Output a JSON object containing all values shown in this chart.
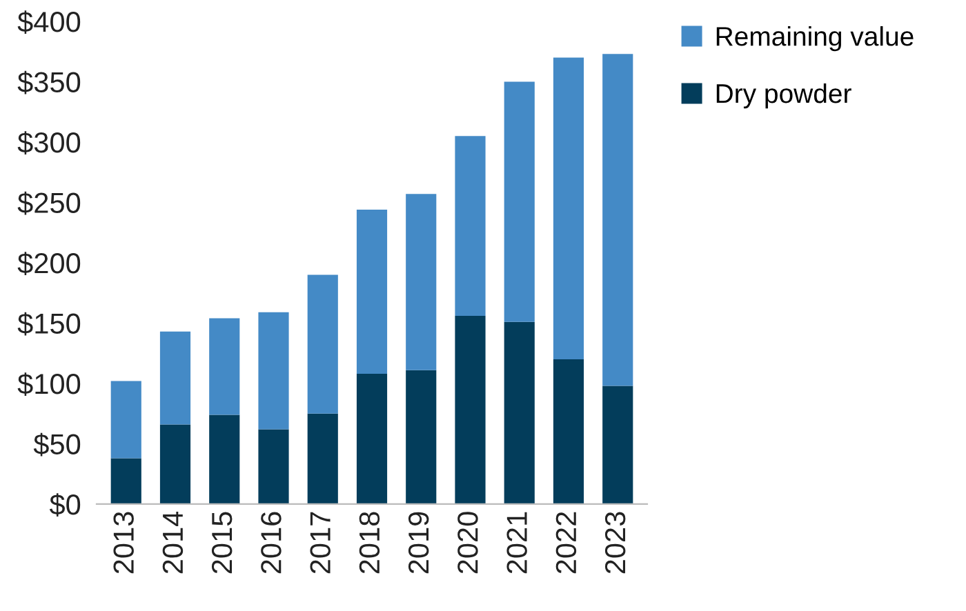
{
  "chart_data": {
    "type": "bar",
    "stacked": true,
    "categories": [
      "2013",
      "2014",
      "2015",
      "2016",
      "2017",
      "2018",
      "2019",
      "2020",
      "2021",
      "2022",
      "2023"
    ],
    "series": [
      {
        "name": "Dry powder",
        "color": "#033d5b",
        "values": [
          38,
          66,
          74,
          62,
          75,
          108,
          111,
          156,
          151,
          120,
          98
        ]
      },
      {
        "name": "Remaining value",
        "color": "#448ac6",
        "values": [
          64,
          77,
          80,
          97,
          115,
          136,
          146,
          149,
          199,
          250,
          275
        ]
      }
    ],
    "ylim": [
      0,
      400
    ],
    "yticks": [
      {
        "value": 0,
        "label": "$0"
      },
      {
        "value": 50,
        "label": "$50"
      },
      {
        "value": 100,
        "label": "$100"
      },
      {
        "value": 150,
        "label": "$150"
      },
      {
        "value": 200,
        "label": "$200"
      },
      {
        "value": 250,
        "label": "$250"
      },
      {
        "value": 300,
        "label": "$300"
      },
      {
        "value": 350,
        "label": "$350"
      },
      {
        "value": 400,
        "label": "$400"
      }
    ],
    "grid": false,
    "legend": "top right"
  }
}
